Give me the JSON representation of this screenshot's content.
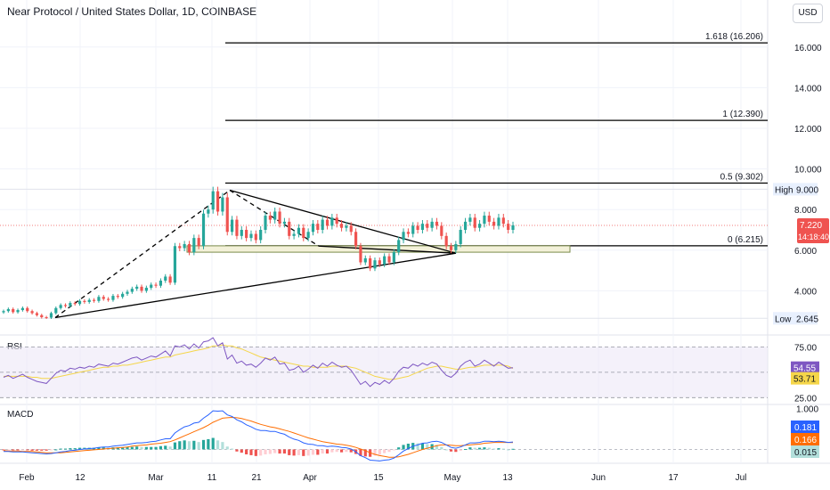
{
  "header": {
    "symbol_title": "Near Protocol / United States Dollar, 1D, COINBASE",
    "currency": "USD"
  },
  "panes": {
    "rsi_label": "RSI",
    "macd_label": "MACD"
  },
  "colors": {
    "up": "#26a69a",
    "down": "#ef5350",
    "rsi_line": "#7e57c2",
    "rsi_ma": "#f5d64a",
    "macd_line": "#2962ff",
    "signal_line": "#ff6d00"
  },
  "chart_data": [
    {
      "type": "candlestick",
      "title": "Near Protocol / United States Dollar, 1D, COINBASE",
      "x_ticks": [
        "Feb",
        "12",
        "Mar",
        "11",
        "21",
        "Apr",
        "15",
        "May",
        "13",
        "Jun",
        "17",
        "Jul"
      ],
      "y_ticks": [
        "4.000",
        "6.000",
        "8.000",
        "10.000",
        "12.000",
        "14.000",
        "16.000"
      ],
      "ylim": [
        2.0,
        17.0
      ],
      "last_price": "7.220",
      "countdown": "14:18:40",
      "high_label": "High",
      "high_value": "9.000",
      "low_label": "Low",
      "low_value": "2.645",
      "fib_levels": [
        {
          "label": "1.618 (16.206)",
          "value": 16.206
        },
        {
          "label": "1 (12.390)",
          "value": 12.39
        },
        {
          "label": "0.5 (9.302)",
          "value": 9.302
        },
        {
          "label": "0 (6.215)",
          "value": 6.215
        }
      ],
      "candles_close": [
        3.0,
        3.1,
        2.95,
        3.05,
        3.15,
        3.0,
        2.9,
        2.8,
        2.7,
        2.68,
        2.9,
        3.15,
        3.3,
        3.25,
        3.4,
        3.35,
        3.5,
        3.45,
        3.55,
        3.5,
        3.7,
        3.6,
        3.55,
        3.75,
        3.7,
        3.85,
        3.95,
        4.1,
        4.2,
        4.0,
        4.15,
        4.3,
        4.25,
        4.5,
        4.7,
        4.4,
        6.2,
        6.1,
        6.3,
        5.9,
        6.6,
        6.2,
        7.8,
        8.0,
        8.9,
        7.9,
        8.6,
        6.9,
        7.5,
        6.7,
        7.0,
        6.6,
        6.8,
        6.5,
        7.0,
        7.7,
        7.5,
        7.9,
        7.3,
        7.4,
        6.7,
        6.8,
        7.1,
        6.6,
        6.9,
        7.3,
        7.0,
        7.5,
        7.2,
        7.6,
        7.3,
        7.1,
        7.2,
        6.9,
        6.2,
        5.4,
        5.6,
        5.1,
        5.5,
        5.3,
        5.7,
        5.4,
        5.9,
        6.5,
        6.9,
        6.8,
        7.2,
        7.0,
        7.3,
        7.1,
        7.4,
        7.2,
        6.7,
        6.2,
        6.0,
        6.3,
        7.0,
        7.4,
        7.6,
        7.1,
        7.3,
        7.7,
        7.4,
        7.2,
        7.6,
        7.3,
        7.0,
        7.22
      ],
      "series": [
        {
          "name": "RSI",
          "pane": "rsi",
          "y_ticks": [
            "75.00",
            "25.00"
          ],
          "last_value": "54.55",
          "ylim": [
            20,
            85
          ],
          "values": [
            45,
            47,
            44,
            46,
            48,
            45,
            43,
            41,
            40,
            39,
            44,
            49,
            52,
            51,
            54,
            53,
            55,
            54,
            56,
            55,
            58,
            57,
            56,
            59,
            58,
            60,
            62,
            64,
            65,
            62,
            64,
            66,
            65,
            68,
            71,
            66,
            76,
            75,
            77,
            73,
            78,
            74,
            80,
            81,
            84,
            76,
            79,
            63,
            67,
            59,
            61,
            57,
            58,
            55,
            59,
            64,
            62,
            65,
            58,
            59,
            52,
            53,
            56,
            50,
            53,
            57,
            54,
            59,
            56,
            60,
            57,
            55,
            56,
            52,
            45,
            38,
            41,
            36,
            40,
            38,
            42,
            39,
            44,
            51,
            55,
            54,
            58,
            56,
            59,
            57,
            60,
            58,
            52,
            47,
            45,
            49,
            56,
            60,
            62,
            56,
            58,
            62,
            59,
            56,
            60,
            57,
            54,
            54.55
          ]
        },
        {
          "name": "RSI MA",
          "pane": "rsi",
          "last_value": "53.71",
          "values": [
            46,
            46,
            46,
            46,
            46,
            46,
            45,
            45,
            44,
            44,
            44,
            45,
            46,
            47,
            48,
            49,
            50,
            51,
            52,
            53,
            54,
            55,
            55,
            56,
            56,
            57,
            57,
            58,
            59,
            60,
            61,
            62,
            63,
            64,
            65,
            65,
            67,
            68,
            69,
            70,
            71,
            72,
            73,
            74,
            76,
            76,
            77,
            76,
            76,
            74,
            73,
            71,
            69,
            67,
            65,
            64,
            63,
            62,
            61,
            60,
            59,
            58,
            57,
            56,
            56,
            55,
            55,
            55,
            55,
            56,
            56,
            56,
            56,
            55,
            54,
            52,
            50,
            48,
            46,
            45,
            44,
            43,
            43,
            44,
            45,
            46,
            48,
            50,
            52,
            54,
            55,
            56,
            56,
            55,
            54,
            53,
            53,
            54,
            55,
            55,
            56,
            57,
            57,
            57,
            57,
            57,
            56,
            53.71
          ]
        },
        {
          "name": "MACD",
          "pane": "macd",
          "y_ticks": [
            "1.000"
          ],
          "last_value": "0.181",
          "ylim": [
            -0.25,
            1.05
          ],
          "values": [
            -0.05,
            -0.05,
            -0.06,
            -0.06,
            -0.06,
            -0.07,
            -0.08,
            -0.09,
            -0.1,
            -0.11,
            -0.1,
            -0.08,
            -0.06,
            -0.05,
            -0.03,
            -0.02,
            0.0,
            0.01,
            0.02,
            0.03,
            0.05,
            0.06,
            0.06,
            0.08,
            0.09,
            0.1,
            0.12,
            0.14,
            0.16,
            0.16,
            0.17,
            0.19,
            0.2,
            0.23,
            0.26,
            0.26,
            0.4,
            0.48,
            0.55,
            0.58,
            0.64,
            0.66,
            0.76,
            0.84,
            0.94,
            0.93,
            0.94,
            0.84,
            0.8,
            0.72,
            0.67,
            0.6,
            0.55,
            0.49,
            0.46,
            0.46,
            0.44,
            0.44,
            0.4,
            0.37,
            0.3,
            0.25,
            0.22,
            0.16,
            0.13,
            0.12,
            0.09,
            0.09,
            0.07,
            0.08,
            0.07,
            0.05,
            0.04,
            0.01,
            -0.06,
            -0.15,
            -0.2,
            -0.26,
            -0.27,
            -0.28,
            -0.26,
            -0.25,
            -0.21,
            -0.13,
            -0.04,
            0.02,
            0.08,
            0.11,
            0.15,
            0.16,
            0.19,
            0.2,
            0.17,
            0.11,
            0.05,
            0.03,
            0.06,
            0.11,
            0.16,
            0.16,
            0.17,
            0.2,
            0.2,
            0.19,
            0.2,
            0.19,
            0.17,
            0.181
          ]
        },
        {
          "name": "Signal",
          "pane": "macd",
          "last_value": "0.166",
          "values": [
            -0.03,
            -0.04,
            -0.04,
            -0.04,
            -0.05,
            -0.05,
            -0.05,
            -0.06,
            -0.07,
            -0.08,
            -0.08,
            -0.08,
            -0.08,
            -0.07,
            -0.06,
            -0.05,
            -0.04,
            -0.03,
            -0.02,
            -0.01,
            0.0,
            0.01,
            0.02,
            0.03,
            0.04,
            0.05,
            0.06,
            0.08,
            0.09,
            0.1,
            0.11,
            0.13,
            0.14,
            0.15,
            0.17,
            0.19,
            0.23,
            0.28,
            0.33,
            0.38,
            0.43,
            0.48,
            0.53,
            0.59,
            0.66,
            0.71,
            0.76,
            0.77,
            0.78,
            0.77,
            0.75,
            0.72,
            0.69,
            0.65,
            0.61,
            0.58,
            0.55,
            0.53,
            0.5,
            0.47,
            0.44,
            0.4,
            0.36,
            0.32,
            0.28,
            0.25,
            0.22,
            0.19,
            0.17,
            0.15,
            0.13,
            0.12,
            0.1,
            0.08,
            0.05,
            0.01,
            -0.03,
            -0.08,
            -0.12,
            -0.15,
            -0.17,
            -0.19,
            -0.19,
            -0.18,
            -0.15,
            -0.12,
            -0.08,
            -0.04,
            -0.0,
            0.03,
            0.06,
            0.09,
            0.11,
            0.11,
            0.1,
            0.09,
            0.09,
            0.1,
            0.11,
            0.12,
            0.13,
            0.15,
            0.16,
            0.17,
            0.17,
            0.17,
            0.17,
            0.166
          ]
        },
        {
          "name": "Histogram",
          "pane": "macd",
          "last_value": "0.015",
          "values": [
            -0.02,
            -0.01,
            -0.02,
            -0.02,
            -0.01,
            -0.02,
            -0.03,
            -0.03,
            -0.03,
            -0.03,
            -0.02,
            0.0,
            0.02,
            0.02,
            0.03,
            0.03,
            0.04,
            0.04,
            0.04,
            0.04,
            0.05,
            0.05,
            0.04,
            0.05,
            0.05,
            0.05,
            0.06,
            0.06,
            0.07,
            0.06,
            0.06,
            0.06,
            0.06,
            0.08,
            0.09,
            0.07,
            0.17,
            0.2,
            0.22,
            0.2,
            0.21,
            0.18,
            0.23,
            0.25,
            0.28,
            0.22,
            0.18,
            0.07,
            0.02,
            -0.05,
            -0.08,
            -0.12,
            -0.14,
            -0.16,
            -0.15,
            -0.12,
            -0.11,
            -0.09,
            -0.1,
            -0.1,
            -0.14,
            -0.15,
            -0.14,
            -0.16,
            -0.15,
            -0.13,
            -0.13,
            -0.1,
            -0.1,
            -0.07,
            -0.06,
            -0.07,
            -0.06,
            -0.07,
            -0.11,
            -0.16,
            -0.17,
            -0.18,
            -0.15,
            -0.13,
            -0.09,
            -0.06,
            -0.02,
            0.05,
            0.11,
            0.14,
            0.16,
            0.15,
            0.15,
            0.13,
            0.13,
            0.11,
            0.06,
            -0.0,
            -0.05,
            -0.06,
            -0.03,
            0.01,
            0.05,
            0.04,
            0.04,
            0.05,
            0.04,
            0.02,
            0.03,
            0.02,
            0.0,
            0.015
          ]
        }
      ]
    }
  ]
}
